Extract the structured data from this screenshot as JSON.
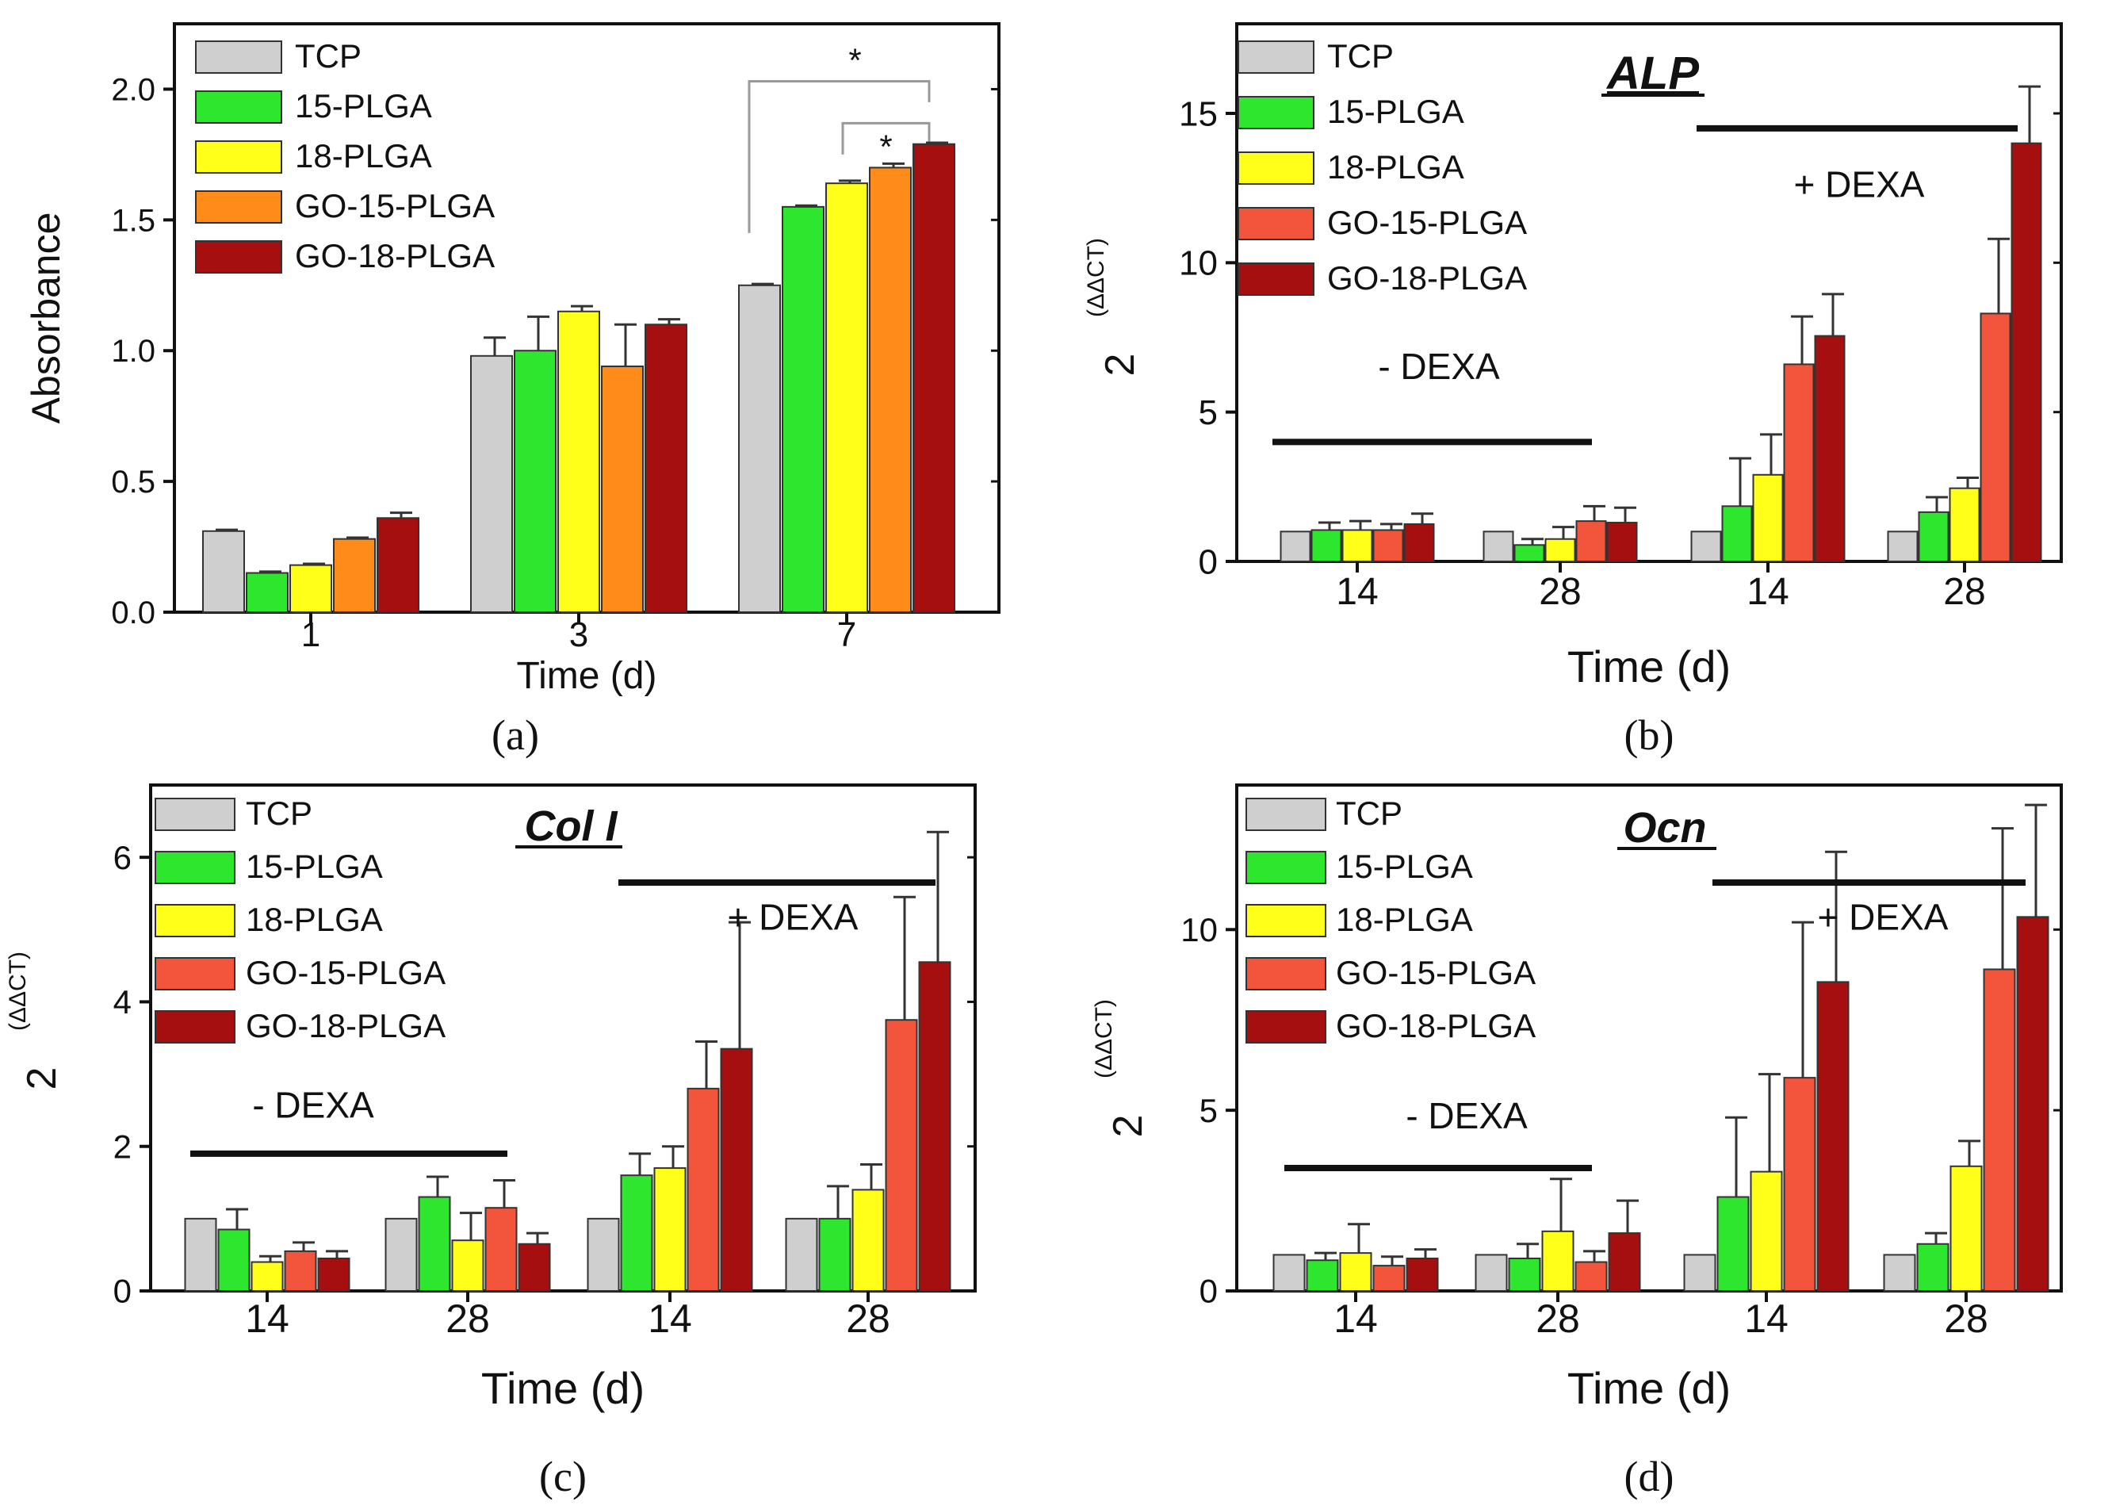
{
  "legend": [
    "TCP",
    "15-PLGA",
    "18-PLGA",
    "GO-15-PLGA",
    "GO-18-PLGA"
  ],
  "colors": {
    "TCP": "#cfcfcf",
    "15-PLGA": "#2ee62e",
    "18-PLGA": "#ffff1a",
    "GO-15-PLGA_a": "#ff8c1a",
    "GO-15-PLGA": "#f2553b",
    "GO-18-PLGA": "#a50f0f"
  },
  "chart_data": [
    {
      "panel": "(a)",
      "type": "bar",
      "title": "",
      "xlabel": "Time (d)",
      "ylabel": "Absorbance",
      "ylim": [
        0,
        2.25
      ],
      "yticks": [
        "0.0",
        "0.5",
        "1.0",
        "1.5",
        "2.0"
      ],
      "categories": [
        "1",
        "3",
        "7"
      ],
      "series": [
        {
          "name": "TCP",
          "values": [
            0.31,
            0.98,
            1.25
          ],
          "errors": [
            0.005,
            0.07,
            0.005
          ]
        },
        {
          "name": "15-PLGA",
          "values": [
            0.15,
            1.0,
            1.55
          ],
          "errors": [
            0.005,
            0.13,
            0.005
          ]
        },
        {
          "name": "18-PLGA",
          "values": [
            0.18,
            1.15,
            1.64
          ],
          "errors": [
            0.005,
            0.02,
            0.01
          ]
        },
        {
          "name": "GO-15-PLGA",
          "values": [
            0.28,
            0.94,
            1.7
          ],
          "errors": [
            0.005,
            0.16,
            0.015
          ]
        },
        {
          "name": "GO-18-PLGA",
          "values": [
            0.36,
            1.1,
            1.79
          ],
          "errors": [
            0.02,
            0.02,
            0.005
          ]
        }
      ],
      "annotations": [
        "*",
        "*"
      ]
    },
    {
      "panel": "(b)",
      "type": "bar",
      "title": "ALP",
      "xlabel": "Time (d)",
      "ylabel": "2",
      "ylabel_superscript": "(ΔΔCT)",
      "ylim": [
        0,
        18
      ],
      "yticks": [
        "0",
        "5",
        "10",
        "15"
      ],
      "categories": [
        "14",
        "28",
        "14",
        "28"
      ],
      "series": [
        {
          "name": "TCP",
          "values": [
            1.0,
            1.0,
            1.0,
            1.0
          ],
          "errors": [
            0,
            0,
            0,
            0
          ]
        },
        {
          "name": "15-PLGA",
          "values": [
            1.05,
            0.55,
            1.85,
            1.65
          ],
          "errors": [
            0.25,
            0.2,
            1.6,
            0.5
          ]
        },
        {
          "name": "18-PLGA",
          "values": [
            1.05,
            0.75,
            2.9,
            2.45
          ],
          "errors": [
            0.3,
            0.4,
            1.35,
            0.35
          ]
        },
        {
          "name": "GO-15-PLGA",
          "values": [
            1.05,
            1.35,
            6.6,
            8.3
          ],
          "errors": [
            0.2,
            0.5,
            1.6,
            2.5
          ]
        },
        {
          "name": "GO-18-PLGA",
          "values": [
            1.25,
            1.3,
            7.55,
            14.0
          ],
          "errors": [
            0.35,
            0.5,
            1.4,
            1.9
          ]
        }
      ],
      "groups": [
        "- DEXA",
        "+ DEXA"
      ]
    },
    {
      "panel": "(c)",
      "type": "bar",
      "title": "Col I",
      "xlabel": "Time (d)",
      "ylabel": "2",
      "ylabel_superscript": "(ΔΔCT)",
      "ylim": [
        0,
        7
      ],
      "yticks": [
        "0",
        "2",
        "4",
        "6"
      ],
      "categories": [
        "14",
        "28",
        "14",
        "28"
      ],
      "series": [
        {
          "name": "TCP",
          "values": [
            1.0,
            1.0,
            1.0,
            1.0
          ],
          "errors": [
            0,
            0,
            0,
            0
          ]
        },
        {
          "name": "15-PLGA",
          "values": [
            0.85,
            1.3,
            1.6,
            1.0
          ],
          "errors": [
            0.28,
            0.28,
            0.3,
            0.45
          ]
        },
        {
          "name": "18-PLGA",
          "values": [
            0.4,
            0.7,
            1.7,
            1.4
          ],
          "errors": [
            0.08,
            0.38,
            0.3,
            0.35
          ]
        },
        {
          "name": "GO-15-PLGA",
          "values": [
            0.55,
            1.15,
            2.8,
            3.75
          ],
          "errors": [
            0.12,
            0.38,
            0.65,
            1.7
          ]
        },
        {
          "name": "GO-18-PLGA",
          "values": [
            0.45,
            0.65,
            3.35,
            4.55
          ],
          "errors": [
            0.1,
            0.15,
            1.75,
            1.8
          ]
        }
      ],
      "groups": [
        "- DEXA",
        "+ DEXA"
      ]
    },
    {
      "panel": "(d)",
      "type": "bar",
      "title": "Ocn",
      "xlabel": "Time (d)",
      "ylabel": "2",
      "ylabel_superscript": "(ΔΔCT)",
      "ylim": [
        0,
        14
      ],
      "yticks": [
        "0",
        "5",
        "10"
      ],
      "categories": [
        "14",
        "28",
        "14",
        "28"
      ],
      "series": [
        {
          "name": "TCP",
          "values": [
            1.0,
            1.0,
            1.0,
            1.0
          ],
          "errors": [
            0,
            0,
            0,
            0
          ]
        },
        {
          "name": "15-PLGA",
          "values": [
            0.85,
            0.9,
            2.6,
            1.3
          ],
          "errors": [
            0.2,
            0.4,
            2.2,
            0.3
          ]
        },
        {
          "name": "18-PLGA",
          "values": [
            1.05,
            1.65,
            3.3,
            3.45
          ],
          "errors": [
            0.8,
            1.45,
            2.7,
            0.7
          ]
        },
        {
          "name": "GO-15-PLGA",
          "values": [
            0.7,
            0.8,
            5.9,
            8.9
          ],
          "errors": [
            0.25,
            0.3,
            4.3,
            3.9
          ]
        },
        {
          "name": "GO-18-PLGA",
          "values": [
            0.9,
            1.6,
            8.55,
            10.35
          ],
          "errors": [
            0.25,
            0.9,
            3.6,
            3.1
          ]
        }
      ],
      "groups": [
        "- DEXA",
        "+ DEXA"
      ]
    }
  ]
}
